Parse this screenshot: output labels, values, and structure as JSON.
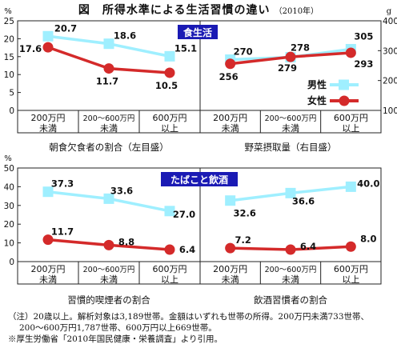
{
  "title": {
    "main": "図　所得水準による生活習慣の違い",
    "year": "（2010年）"
  },
  "percent_unit": "%",
  "gram_unit": "g",
  "categories": [
    "200万円\n未満",
    "200～600万円\n未満",
    "600万円\n以上"
  ],
  "legend": {
    "male": "男性",
    "female": "女性"
  },
  "colors": {
    "male": "#9fefff",
    "female": "#d42a2a",
    "badge": "#1a1ab4"
  },
  "chart_data": [
    {
      "type": "line",
      "group_label": "食生活",
      "xlabel": "朝食欠食者の割合（左目盛）",
      "ylabel": "%",
      "ylim": [
        0,
        25
      ],
      "yticks": [
        "0",
        "5",
        "10",
        "15",
        "20",
        "25"
      ],
      "categories": [
        "200万円\n未満",
        "200～600万円\n未満",
        "600万円\n以上"
      ],
      "series": [
        {
          "name": "男性",
          "values": [
            20.7,
            18.6,
            15.1
          ],
          "labels": [
            "20.7",
            "18.6",
            "15.1"
          ]
        },
        {
          "name": "女性",
          "values": [
            17.6,
            11.7,
            10.5
          ],
          "labels": [
            "17.6",
            "11.7",
            "10.5"
          ]
        }
      ]
    },
    {
      "type": "line",
      "xlabel": "野菜摂取量（右目盛）",
      "ylabel": "g",
      "ylim": [
        100,
        400
      ],
      "yticks": [
        "100",
        "200",
        "300",
        "400"
      ],
      "categories": [
        "200万円\n未満",
        "200～600万円\n未満",
        "600万円\n以上"
      ],
      "series": [
        {
          "name": "男性",
          "values": [
            270,
            278,
            305
          ],
          "labels": [
            "270",
            "278",
            "305"
          ]
        },
        {
          "name": "女性",
          "values": [
            256,
            279,
            293
          ],
          "labels": [
            "256",
            "279",
            "293"
          ]
        }
      ]
    },
    {
      "type": "line",
      "group_label": "たばこと飲酒",
      "xlabel": "習慣的喫煙者の割合",
      "ylabel": "%",
      "ylim": [
        0,
        50
      ],
      "yticks": [
        "0",
        "10",
        "20",
        "30",
        "40",
        "50"
      ],
      "categories": [
        "200万円\n未満",
        "200～600万円\n未満",
        "600万円\n以上"
      ],
      "series": [
        {
          "name": "男性",
          "values": [
            37.3,
            33.6,
            27.0
          ],
          "labels": [
            "37.3",
            "33.6",
            "27.0"
          ]
        },
        {
          "name": "女性",
          "values": [
            11.7,
            8.8,
            6.4
          ],
          "labels": [
            "11.7",
            "8.8",
            "6.4"
          ]
        }
      ]
    },
    {
      "type": "line",
      "xlabel": "飲酒習慣者の割合",
      "ylabel": "%",
      "ylim": [
        0,
        50
      ],
      "categories": [
        "200万円\n未満",
        "200～600万円\n未満",
        "600万円\n以上"
      ],
      "series": [
        {
          "name": "男性",
          "values": [
            32.6,
            36.6,
            40.0
          ],
          "labels": [
            "32.6",
            "36.6",
            "40.0"
          ]
        },
        {
          "name": "女性",
          "values": [
            7.2,
            6.4,
            8.0
          ],
          "labels": [
            "7.2",
            "6.4",
            "8.0"
          ]
        }
      ]
    }
  ],
  "notes": [
    "（注）20歳以上。解析対象は3,189世帯。金額はいずれも世帯の所得。200万円未満733世帯、",
    "200～600万円1,787世帯、600万円以上669世帯。",
    "※厚生労働省「2010年国民健康・栄養調査」より引用。"
  ]
}
